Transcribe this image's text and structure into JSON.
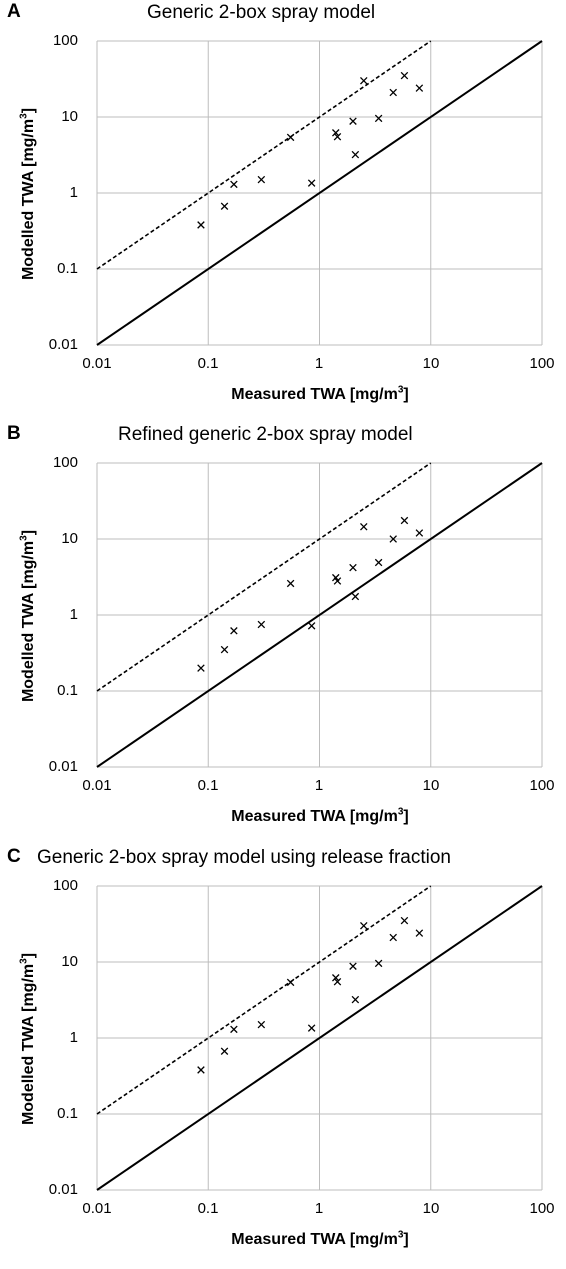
{
  "charts": [
    {
      "letter": "A",
      "title": "Generic 2-box spray model"
    },
    {
      "letter": "B",
      "title": "Refined generic 2-box spray model"
    },
    {
      "letter": "C",
      "title": "Generic 2-box spray model using release fraction"
    }
  ],
  "axes": {
    "x_label_text": "Measured TWA [mg/m",
    "y_label_text": "Modelled TWA [mg/m",
    "unit_superscript": "3",
    "unit_close": "]",
    "ticks": [
      "0.01",
      "0.1",
      "1",
      "10",
      "100"
    ]
  },
  "chart_data": [
    {
      "type": "scatter",
      "title": "Generic 2-box spray model",
      "xlabel": "Measured TWA [mg/m3]",
      "ylabel": "Modelled TWA [mg/m3]",
      "xscale": "log",
      "yscale": "log",
      "xlim": [
        0.01,
        100
      ],
      "ylim": [
        0.01,
        100
      ],
      "grid": true,
      "reference_lines": [
        {
          "style": "solid",
          "equation": "y = x"
        },
        {
          "style": "dashed",
          "equation": "y = 10x"
        }
      ],
      "x": [
        0.086,
        0.14,
        0.17,
        0.3,
        0.55,
        0.85,
        1.4,
        1.45,
        2.0,
        2.1,
        2.5,
        3.4,
        4.6,
        5.8,
        7.9
      ],
      "y": [
        0.38,
        0.67,
        1.3,
        1.5,
        5.4,
        1.35,
        6.2,
        5.5,
        8.8,
        3.2,
        30,
        9.6,
        21,
        35,
        24
      ]
    },
    {
      "type": "scatter",
      "title": "Refined generic 2-box spray model",
      "xlabel": "Measured TWA [mg/m3]",
      "ylabel": "Modelled TWA [mg/m3]",
      "xscale": "log",
      "yscale": "log",
      "xlim": [
        0.01,
        100
      ],
      "ylim": [
        0.01,
        100
      ],
      "grid": true,
      "reference_lines": [
        {
          "style": "solid",
          "equation": "y = x"
        },
        {
          "style": "dashed",
          "equation": "y = 10x"
        }
      ],
      "x": [
        0.086,
        0.14,
        0.17,
        0.3,
        0.55,
        0.85,
        1.4,
        1.45,
        2.0,
        2.1,
        2.5,
        3.4,
        4.6,
        5.8,
        7.9
      ],
      "y": [
        0.2,
        0.35,
        0.62,
        0.75,
        2.6,
        0.72,
        3.1,
        2.8,
        4.2,
        1.75,
        14.5,
        4.9,
        10,
        17.5,
        12
      ]
    },
    {
      "type": "scatter",
      "title": "Generic 2-box spray model using release fraction",
      "xlabel": "Measured TWA [mg/m3]",
      "ylabel": "Modelled TWA [mg/m3]",
      "xscale": "log",
      "yscale": "log",
      "xlim": [
        0.01,
        100
      ],
      "ylim": [
        0.01,
        100
      ],
      "grid": true,
      "reference_lines": [
        {
          "style": "solid",
          "equation": "y = x"
        },
        {
          "style": "dashed",
          "equation": "y = 10x"
        }
      ],
      "x": [
        0.086,
        0.14,
        0.17,
        0.3,
        0.55,
        0.85,
        1.4,
        1.45,
        2.0,
        2.1,
        2.5,
        3.4,
        4.6,
        5.8,
        7.9
      ],
      "y": [
        0.38,
        0.67,
        1.3,
        1.5,
        5.4,
        1.35,
        6.2,
        5.5,
        8.8,
        3.2,
        30,
        9.6,
        21,
        35,
        24
      ]
    }
  ]
}
